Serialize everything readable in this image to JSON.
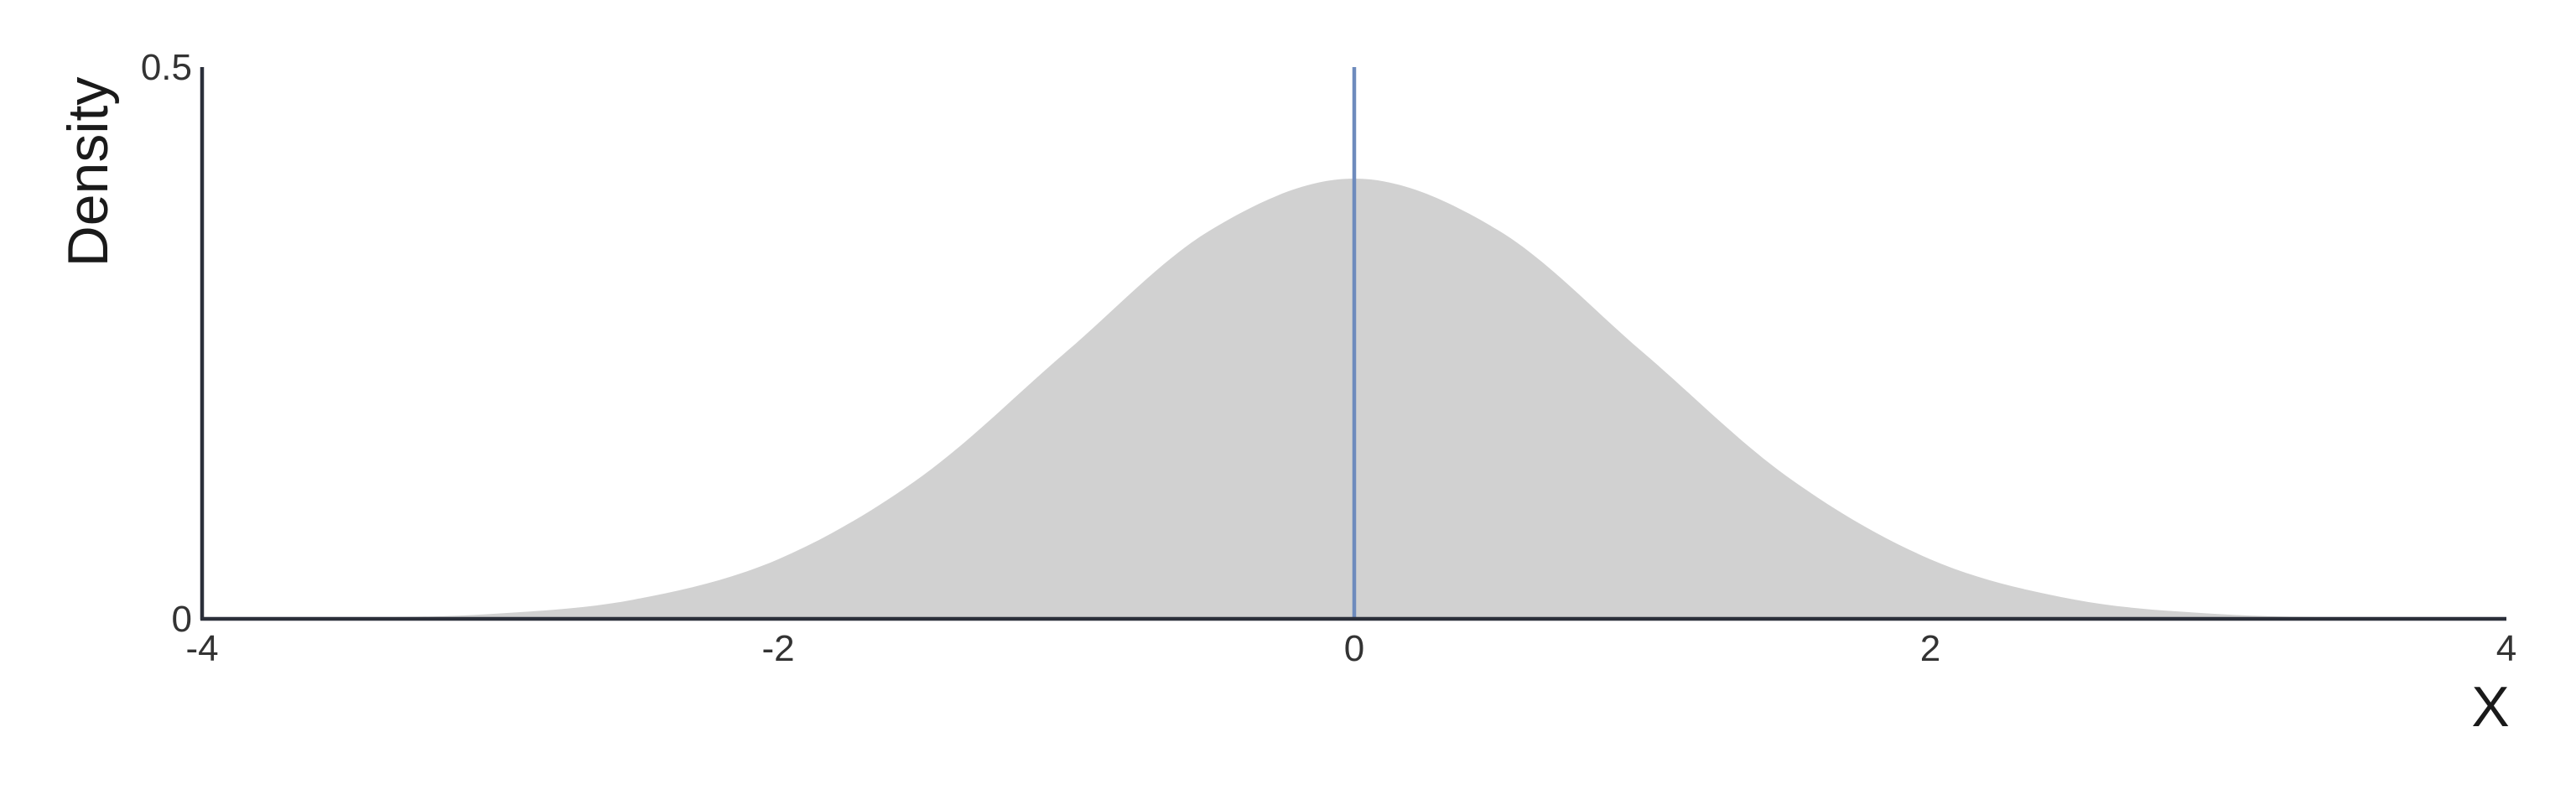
{
  "chart_data": {
    "type": "area",
    "title": "",
    "xlabel": "X",
    "ylabel": "Density",
    "xlim": [
      -4,
      4
    ],
    "ylim": [
      0,
      0.5
    ],
    "x_ticks": [
      -4,
      -2,
      0,
      2,
      4
    ],
    "x_tick_labels": [
      "-4",
      "-2",
      "0",
      "2",
      "4"
    ],
    "y_ticks": [
      0,
      0.5
    ],
    "y_tick_labels": [
      "0",
      "0.5"
    ],
    "grid": false,
    "series": [
      {
        "kind": "density",
        "fill_color": "#d1d1d1",
        "x": [
          -4,
          -3.5,
          -3,
          -2.5,
          -2,
          -1.5,
          -1,
          -0.5,
          0,
          0.5,
          1,
          1.5,
          2,
          2.5,
          3,
          3.5,
          4
        ],
        "y": [
          0.0001,
          0.0009,
          0.0044,
          0.0175,
          0.054,
          0.1295,
          0.242,
          0.3521,
          0.3989,
          0.3521,
          0.242,
          0.1295,
          0.054,
          0.0175,
          0.0044,
          0.0009,
          0.0001
        ]
      }
    ],
    "vline": {
      "x": 0,
      "color": "#6e8bbd"
    },
    "axis_color": "#2b2f3a"
  }
}
